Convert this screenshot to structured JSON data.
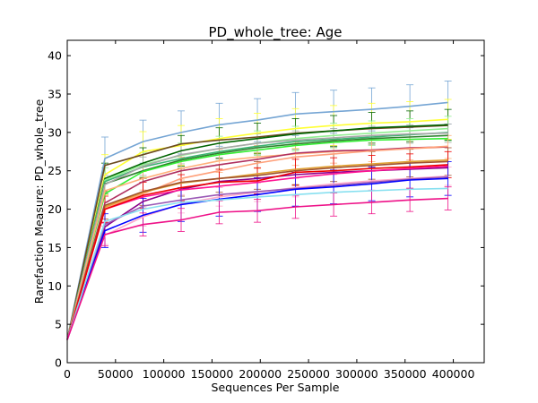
{
  "chart_data": {
    "type": "line",
    "title": "PD_whole_tree: Age",
    "xlabel": "Sequences Per Sample",
    "ylabel": "Rarefaction Measure: PD_whole_tree",
    "xlim": [
      0,
      432000
    ],
    "ylim": [
      0,
      42
    ],
    "xticks": [
      0,
      50000,
      100000,
      150000,
      200000,
      250000,
      300000,
      350000,
      400000
    ],
    "yticks": [
      0,
      5,
      10,
      15,
      20,
      25,
      30,
      35,
      40
    ],
    "grid": false,
    "legend": "none",
    "x": [
      10,
      39000,
      78500,
      118000,
      157500,
      197000,
      236500,
      276000,
      315500,
      355000,
      394500
    ],
    "series": [
      {
        "color": "#75a5d4",
        "values": [
          3.0,
          26.6,
          28.8,
          30.0,
          31.0,
          31.6,
          32.4,
          32.7,
          33.0,
          33.4,
          33.9
        ],
        "error": 2.8
      },
      {
        "color": "#ffff33",
        "values": [
          3.0,
          24.5,
          27.5,
          28.3,
          29.2,
          29.9,
          30.5,
          30.9,
          31.2,
          31.4,
          31.7
        ],
        "error": 2.6
      },
      {
        "color": "#6b4a1f",
        "values": [
          3.0,
          25.7,
          27.1,
          28.5,
          29.0,
          29.4,
          29.9,
          30.2,
          30.5,
          30.7,
          30.9
        ]
      },
      {
        "color": "#006400",
        "values": [
          3.0,
          24.0,
          26.0,
          27.6,
          28.6,
          29.2,
          29.8,
          30.2,
          30.6,
          30.8,
          31.0
        ],
        "error": 2.0
      },
      {
        "color": "#90ee90",
        "values": [
          3.0,
          23.8,
          25.8,
          27.0,
          27.9,
          28.6,
          29.2,
          29.6,
          29.9,
          30.2,
          30.5
        ],
        "error": 1.6
      },
      {
        "color": "#3cb371",
        "values": [
          3.0,
          23.6,
          25.5,
          26.6,
          27.5,
          28.2,
          28.8,
          29.1,
          29.4,
          29.7,
          30.0
        ]
      },
      {
        "color": "#2f7f2f",
        "values": [
          3.0,
          23.3,
          25.0,
          26.4,
          27.3,
          28.0,
          28.5,
          28.9,
          29.2,
          29.4,
          29.6
        ]
      },
      {
        "color": "#33ee33",
        "values": [
          3.0,
          22.0,
          24.9,
          26.2,
          27.1,
          27.7,
          28.3,
          28.7,
          29.0,
          29.1,
          29.2
        ]
      },
      {
        "color": "#a8a8a8",
        "values": [
          3.0,
          23.2,
          25.6,
          27.1,
          27.9,
          28.6,
          29.0,
          29.3,
          29.6,
          29.8,
          29.9
        ],
        "error": 1.2
      },
      {
        "color": "#ffb07a",
        "values": [
          3.0,
          22.4,
          24.0,
          25.3,
          26.3,
          26.8,
          27.2,
          27.5,
          27.7,
          27.9,
          28.1
        ],
        "error": 1.5
      },
      {
        "color": "#b03060",
        "values": [
          3.0,
          20.8,
          23.6,
          25.0,
          25.8,
          26.5,
          27.3,
          27.6,
          27.7,
          28.0,
          28.1
        ]
      },
      {
        "color": "#ffa07a",
        "values": [
          3.0,
          20.2,
          22.0,
          24.0,
          25.0,
          26.0,
          26.8,
          27.2,
          27.6,
          27.9,
          28.2
        ]
      },
      {
        "color": "#e0a030",
        "values": [
          3.0,
          20.3,
          22.2,
          23.4,
          24.0,
          24.6,
          25.2,
          25.6,
          25.9,
          26.2,
          26.4
        ]
      },
      {
        "color": "#a0522d",
        "values": [
          3.0,
          20.5,
          22.3,
          23.5,
          24.0,
          24.4,
          25.0,
          25.4,
          25.7,
          26.0,
          26.2
        ],
        "error": 1.8
      },
      {
        "color": "#8b008b",
        "values": [
          3.0,
          17.7,
          21.0,
          22.6,
          23.6,
          24.0,
          24.5,
          24.8,
          25.0,
          25.2,
          25.4
        ]
      },
      {
        "color": "#ff1493",
        "values": [
          3.0,
          20.0,
          21.6,
          22.5,
          23.0,
          23.5,
          24.1,
          24.6,
          25.0,
          25.3,
          25.6
        ]
      },
      {
        "color": "#ee0000",
        "values": [
          3.0,
          20.0,
          21.8,
          22.8,
          23.5,
          23.7,
          24.8,
          25.0,
          25.3,
          25.5,
          25.8
        ],
        "error": 1.7
      },
      {
        "color": "#ffaacc",
        "values": [
          3.0,
          16.6,
          19.0,
          20.7,
          21.6,
          22.2,
          22.8,
          23.3,
          23.7,
          24.0,
          24.3
        ],
        "error": 1.2
      },
      {
        "color": "#9b59b6",
        "values": [
          3.0,
          18.0,
          20.4,
          21.2,
          21.9,
          22.3,
          22.7,
          23.1,
          23.5,
          23.9,
          24.2
        ]
      },
      {
        "color": "#0000ff",
        "values": [
          3.0,
          17.2,
          19.2,
          20.6,
          21.3,
          21.9,
          22.6,
          22.9,
          23.3,
          23.8,
          24.0
        ],
        "error": 2.2
      },
      {
        "color": "#87e0f0",
        "values": [
          3.0,
          18.4,
          20.0,
          20.9,
          21.2,
          21.6,
          21.9,
          22.2,
          22.4,
          22.6,
          22.7
        ]
      },
      {
        "color": "#ee1188",
        "values": [
          3.0,
          16.7,
          18.0,
          18.6,
          19.6,
          19.8,
          20.3,
          20.6,
          20.9,
          21.2,
          21.4
        ],
        "error": 1.5
      }
    ]
  }
}
